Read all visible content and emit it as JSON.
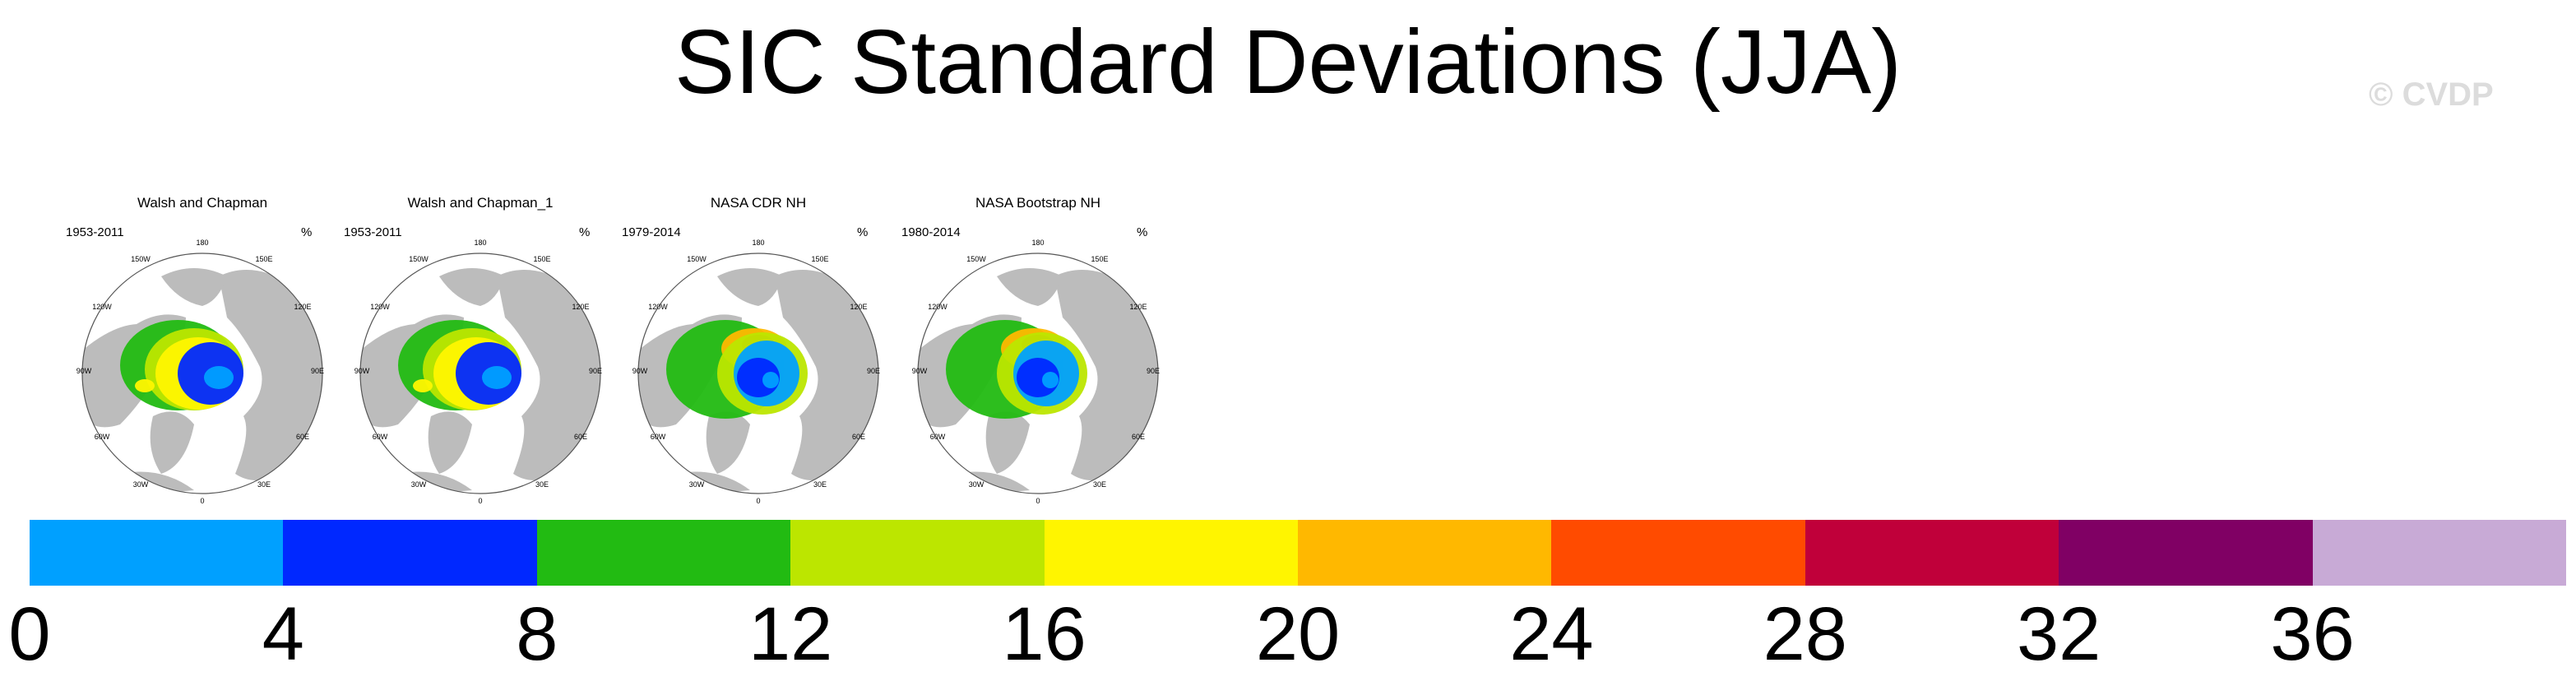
{
  "title": "SIC Standard Deviations (JJA)",
  "watermark": "© CVDP",
  "panels": [
    {
      "title": "Walsh and Chapman",
      "years": "1953-2011",
      "units": "%"
    },
    {
      "title": "Walsh and Chapman_1",
      "years": "1953-2011",
      "units": "%"
    },
    {
      "title": "NASA CDR NH",
      "years": "1979-2014",
      "units": "%"
    },
    {
      "title": "NASA Bootstrap NH",
      "years": "1980-2014",
      "units": "%"
    }
  ],
  "map_labels": {
    "lon_top": "180",
    "lon_upper_left": "150W",
    "lon_upper_right": "150E",
    "lon_left_upper": "120W",
    "lon_right_upper": "120E",
    "lon_left": "90W",
    "lon_right": "90E",
    "lon_left_lower": "60W",
    "lon_right_lower": "60E",
    "lon_lower_left": "30W",
    "lon_lower_right": "30E",
    "lon_bottom": "0"
  },
  "colors": {
    "land": "#bcbcbc",
    "ocean": "#ffffff"
  },
  "colorbar": {
    "colors": [
      "#00a0ff",
      "#0028ff",
      "#22bb12",
      "#bce600",
      "#fff500",
      "#ffb800",
      "#ff4b00",
      "#c0003a",
      "#800064",
      "#c8aad6"
    ],
    "labels": [
      "0",
      "4",
      "8",
      "12",
      "16",
      "20",
      "24",
      "28",
      "32",
      "36"
    ]
  }
}
